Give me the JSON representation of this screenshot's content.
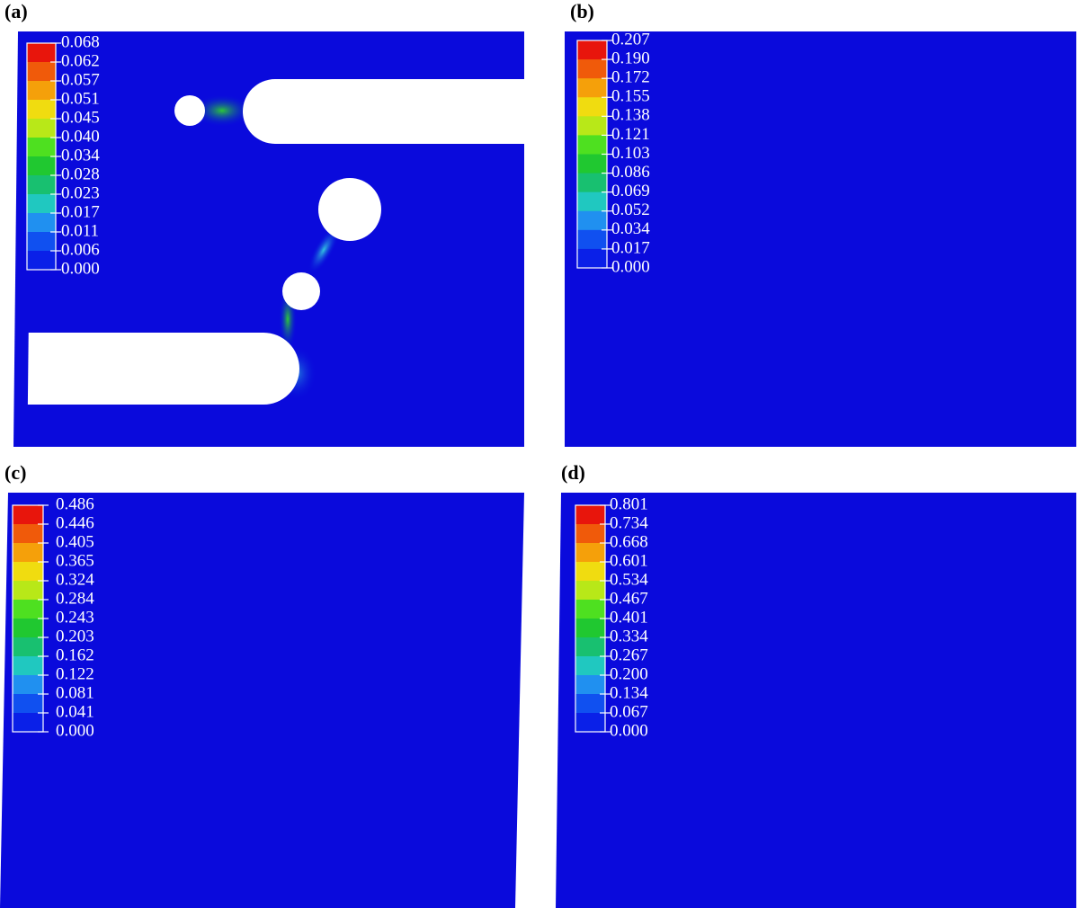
{
  "panels": [
    {
      "label": "(a)",
      "ticks": [
        "0.068",
        "0.062",
        "0.057",
        "0.051",
        "0.045",
        "0.040",
        "0.034",
        "0.028",
        "0.023",
        "0.017",
        "0.011",
        "0.006",
        "0.000"
      ]
    },
    {
      "label": "(b)",
      "ticks": [
        "0.207",
        "0.190",
        "0.172",
        "0.155",
        "0.138",
        "0.121",
        "0.103",
        "0.086",
        "0.069",
        "0.052",
        "0.034",
        "0.017",
        "0.000"
      ]
    },
    {
      "label": "(c)",
      "ticks": [
        "0.486",
        "0.446",
        "0.405",
        "0.365",
        "0.324",
        "0.284",
        "0.243",
        "0.203",
        "0.162",
        "0.122",
        "0.081",
        "0.041",
        "0.000"
      ]
    },
    {
      "label": "(d)",
      "ticks": [
        "0.801",
        "0.734",
        "0.668",
        "0.601",
        "0.534",
        "0.467",
        "0.401",
        "0.334",
        "0.267",
        "0.200",
        "0.134",
        "0.067",
        "0.000"
      ]
    }
  ]
}
